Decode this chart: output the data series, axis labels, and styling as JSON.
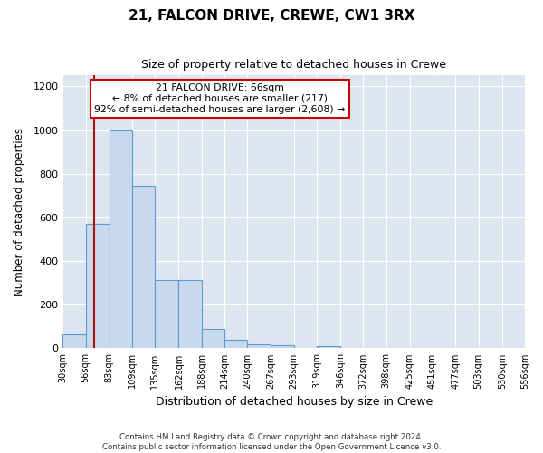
{
  "title": "21, FALCON DRIVE, CREWE, CW1 3RX",
  "subtitle": "Size of property relative to detached houses in Crewe",
  "xlabel": "Distribution of detached houses by size in Crewe",
  "ylabel": "Number of detached properties",
  "bar_color": "#c9d9ed",
  "bar_edge_color": "#5b9bd5",
  "plot_bg_color": "#dde6f0",
  "fig_bg_color": "#ffffff",
  "bin_edges": [
    30,
    56,
    83,
    109,
    135,
    162,
    188,
    214,
    240,
    267,
    293,
    319,
    346,
    372,
    398,
    425,
    451,
    477,
    503,
    530,
    556
  ],
  "bin_labels": [
    "30sqm",
    "56sqm",
    "83sqm",
    "109sqm",
    "135sqm",
    "162sqm",
    "188sqm",
    "214sqm",
    "240sqm",
    "267sqm",
    "293sqm",
    "319sqm",
    "346sqm",
    "372sqm",
    "398sqm",
    "425sqm",
    "451sqm",
    "477sqm",
    "503sqm",
    "530sqm",
    "556sqm"
  ],
  "bar_heights": [
    65,
    570,
    1000,
    745,
    315,
    315,
    90,
    40,
    20,
    15,
    0,
    10,
    0,
    0,
    0,
    0,
    0,
    0,
    0,
    0
  ],
  "property_size": 66,
  "property_label": "21 FALCON DRIVE: 66sqm",
  "annotation_line1": "← 8% of detached houses are smaller (217)",
  "annotation_line2": "92% of semi-detached houses are larger (2,608) →",
  "vline_color": "#aa1111",
  "annotation_box_edge_color": "#cc0000",
  "ylim": [
    0,
    1250
  ],
  "yticks": [
    0,
    200,
    400,
    600,
    800,
    1000,
    1200
  ],
  "footer_line1": "Contains HM Land Registry data © Crown copyright and database right 2024.",
  "footer_line2": "Contains public sector information licensed under the Open Government Licence v3.0."
}
